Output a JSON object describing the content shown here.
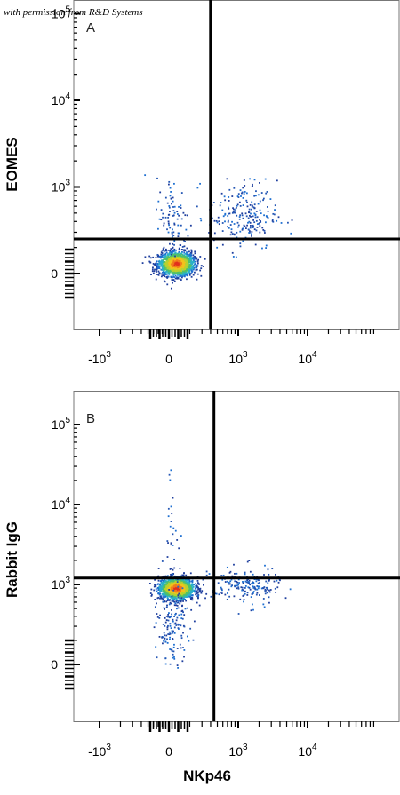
{
  "permission_note": "with permission from R&D Systems",
  "shared_xlabel": "NKp46",
  "chart_data": [
    {
      "type": "scatter",
      "panel_label": "A",
      "xlabel": "",
      "ylabel": "EOMES",
      "x_ticks": [
        "-10^3",
        "0",
        "10^3",
        "10^4"
      ],
      "y_ticks": [
        "0",
        "10^3",
        "10^4",
        "10^5"
      ],
      "quadrant_gate": {
        "x": 0.6,
        "y": 0.4
      },
      "populations": [
        {
          "name": "",
          "center": {
            "x": 0.1,
            "y": 0.12
          },
          "spread": {
            "x": 0.13,
            "y": 0.07
          },
          "count": 1500,
          "density": "high"
        },
        {
          "name": "",
          "center": {
            "x": 1.05,
            "y": 0.68
          },
          "spread": {
            "x": 0.25,
            "y": 0.2
          },
          "count": 230,
          "density": "low"
        },
        {
          "name": "",
          "center": {
            "x": 0.05,
            "y": 0.62
          },
          "spread": {
            "x": 0.12,
            "y": 0.25
          },
          "count": 90,
          "density": "low"
        }
      ]
    },
    {
      "type": "scatter",
      "panel_label": "B",
      "xlabel": "NKp46",
      "ylabel": "Rabbit IgG",
      "x_ticks": [
        "-10^3",
        "0",
        "10^3",
        "10^4"
      ],
      "y_ticks": [
        "0",
        "10^3",
        "10^4",
        "10^5"
      ],
      "quadrant_gate": {
        "x": 0.65,
        "y": 1.08
      },
      "populations": [
        {
          "name": "",
          "center": {
            "x": 0.1,
            "y": 0.96
          },
          "spread": {
            "x": 0.13,
            "y": 0.07
          },
          "count": 1500,
          "density": "high"
        },
        {
          "name": "",
          "center": {
            "x": 1.1,
            "y": 0.98
          },
          "spread": {
            "x": 0.25,
            "y": 0.12
          },
          "count": 180,
          "density": "low"
        },
        {
          "name": "",
          "center": {
            "x": 0.05,
            "y": 0.45
          },
          "spread": {
            "x": 0.12,
            "y": 0.2
          },
          "count": 140,
          "density": "low"
        },
        {
          "name": "",
          "center": {
            "x": 0.05,
            "y": 1.6
          },
          "spread": {
            "x": 0.06,
            "y": 0.45
          },
          "count": 40,
          "density": "low"
        }
      ]
    }
  ]
}
